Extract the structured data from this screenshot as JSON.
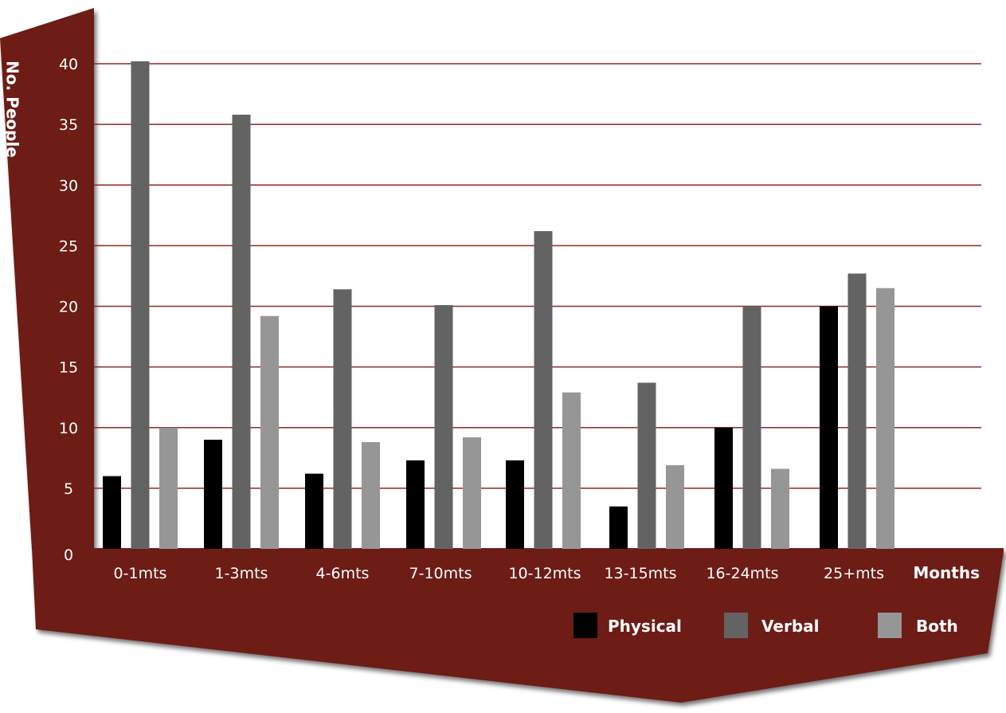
{
  "chart_data": {
    "type": "bar",
    "ylabel": "No. People",
    "xlabel": "Months",
    "categories": [
      "0-1mts",
      "1-3mts",
      "4-6mts",
      "7-10mts",
      "10-12mts",
      "13-15mts",
      "16-24mts",
      "25+mts"
    ],
    "series": [
      {
        "name": "Physical",
        "color": "#000000",
        "values": [
          6,
          9,
          6.2,
          7.3,
          7.3,
          3.5,
          10,
          20
        ]
      },
      {
        "name": "Verbal",
        "color": "#636363",
        "values": [
          40.2,
          35.8,
          21.4,
          20.1,
          26.2,
          13.7,
          20,
          22.7
        ]
      },
      {
        "name": "Both",
        "color": "#969696",
        "values": [
          10,
          19.2,
          8.8,
          9.2,
          12.9,
          6.9,
          6.6,
          21.5
        ]
      }
    ],
    "yticks": [
      0,
      5,
      10,
      15,
      20,
      25,
      30,
      35,
      40
    ],
    "ylim": [
      0,
      40
    ],
    "grid": true,
    "legend_position": "bottom-right",
    "colors": {
      "background": "#6d1f18",
      "gridline": "#8a2a22",
      "text": "#ffffff"
    }
  }
}
